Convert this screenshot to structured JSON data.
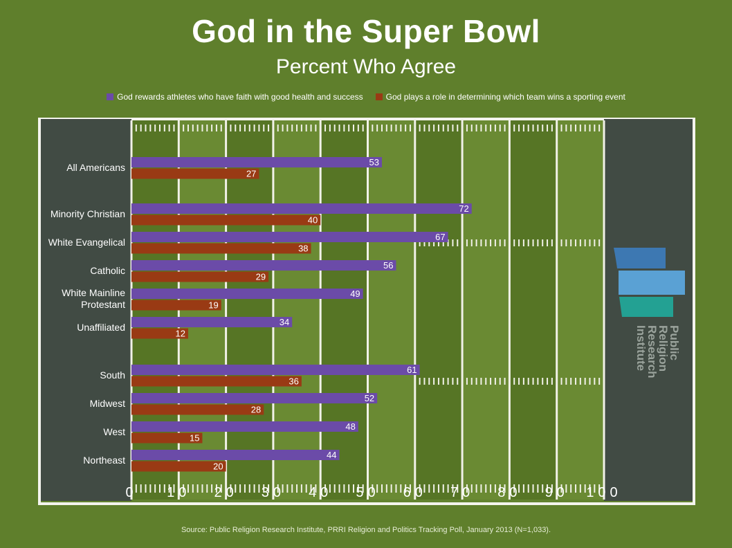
{
  "title": "God in the Super Bowl",
  "subtitle": "Percent Who Agree",
  "colors": {
    "series1": "#6b4ba8",
    "series2": "#993a14",
    "endzone": "#414b44",
    "grass_dark": "#567525",
    "grass_light": "#6a8a33"
  },
  "source": "Source: Public Religion Research Institute, PRRI Religion and Politics Tracking Poll, January 2013 (N=1,033).",
  "logo": {
    "text": "Public\nReligion\nResearch\nInstitute"
  },
  "chart_data": {
    "type": "bar",
    "orientation": "horizontal",
    "title": "God in the Super Bowl",
    "subtitle": "Percent Who Agree",
    "categories": [
      "All Americans",
      "Minority Christian",
      "White Evangelical",
      "Catholic",
      "White Mainline\nProtestant",
      "Unaffiliated",
      "South",
      "Midwest",
      "West",
      "Northeast"
    ],
    "series": [
      {
        "name": "God rewards athletes who have faith with good health and success",
        "values": [
          53,
          72,
          67,
          56,
          49,
          34,
          61,
          52,
          48,
          44
        ]
      },
      {
        "name": "God plays a role in determining which team wins a sporting event",
        "values": [
          27,
          40,
          38,
          29,
          19,
          12,
          36,
          28,
          15,
          20
        ]
      }
    ],
    "xlim": [
      0,
      100
    ],
    "xticks": [
      0,
      10,
      20,
      30,
      40,
      50,
      60,
      70,
      80,
      90,
      100
    ],
    "xtick_labels": [
      "0",
      "10",
      "20",
      "30",
      "40",
      "50",
      "60",
      "70",
      "80",
      "90",
      "100"
    ],
    "legend_position": "top"
  }
}
